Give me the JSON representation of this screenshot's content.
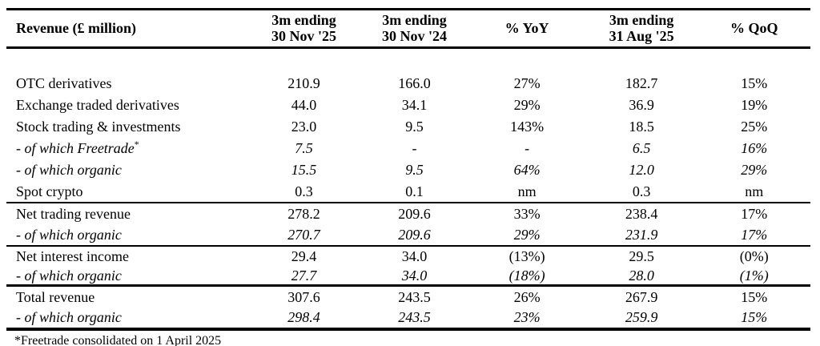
{
  "colors": {
    "background": "#ffffff",
    "text": "#000000",
    "rule_lines": "#000000"
  },
  "table": {
    "header": {
      "label": "Revenue (£ million)",
      "cols": [
        "3m ending\n30 Nov '25",
        "3m ending\n30 Nov '24",
        "% YoY",
        "3m ending\n31 Aug '25",
        "% QoQ"
      ]
    },
    "rows": [
      {
        "label": "OTC derivatives",
        "sup": "",
        "values": [
          "210.9",
          "166.0",
          "27%",
          "182.7",
          "15%"
        ]
      },
      {
        "label": "Exchange traded derivatives",
        "sup": "",
        "values": [
          "44.0",
          "34.1",
          "29%",
          "36.9",
          "19%"
        ]
      },
      {
        "label": "Stock trading & investments",
        "sup": "",
        "values": [
          "23.0",
          "9.5",
          "143%",
          "18.5",
          "25%"
        ]
      },
      {
        "label": "- of which Freetrade",
        "sup": "*",
        "values": [
          "7.5",
          "-",
          "-",
          "6.5",
          "16%"
        ]
      },
      {
        "label": "- of which organic",
        "sup": "",
        "values": [
          "15.5",
          "9.5",
          "64%",
          "12.0",
          "29%"
        ]
      },
      {
        "label": "Spot crypto",
        "sup": "",
        "values": [
          "0.3",
          "0.1",
          "nm",
          "0.3",
          "nm"
        ]
      },
      {
        "label": "Net trading revenue",
        "sup": "",
        "values": [
          "278.2",
          "209.6",
          "33%",
          "238.4",
          "17%"
        ]
      },
      {
        "label": "- of which organic",
        "sup": "",
        "values": [
          "270.7",
          "209.6",
          "29%",
          "231.9",
          "17%"
        ]
      },
      {
        "label": "Net interest income",
        "sup": "",
        "values": [
          "29.4",
          "34.0",
          "(13%)",
          "29.5",
          "(0%)"
        ]
      },
      {
        "label": "- of which organic",
        "sup": "",
        "values": [
          "27.7",
          "34.0",
          "(18%)",
          "28.0",
          "(1%)"
        ]
      },
      {
        "label": "Total revenue",
        "sup": "",
        "values": [
          "307.6",
          "243.5",
          "26%",
          "267.9",
          "15%"
        ]
      },
      {
        "label": "- of which organic",
        "sup": "",
        "values": [
          "298.4",
          "243.5",
          "23%",
          "259.9",
          "15%"
        ]
      }
    ],
    "footnote": "*Freetrade consolidated on 1 April 2025"
  }
}
